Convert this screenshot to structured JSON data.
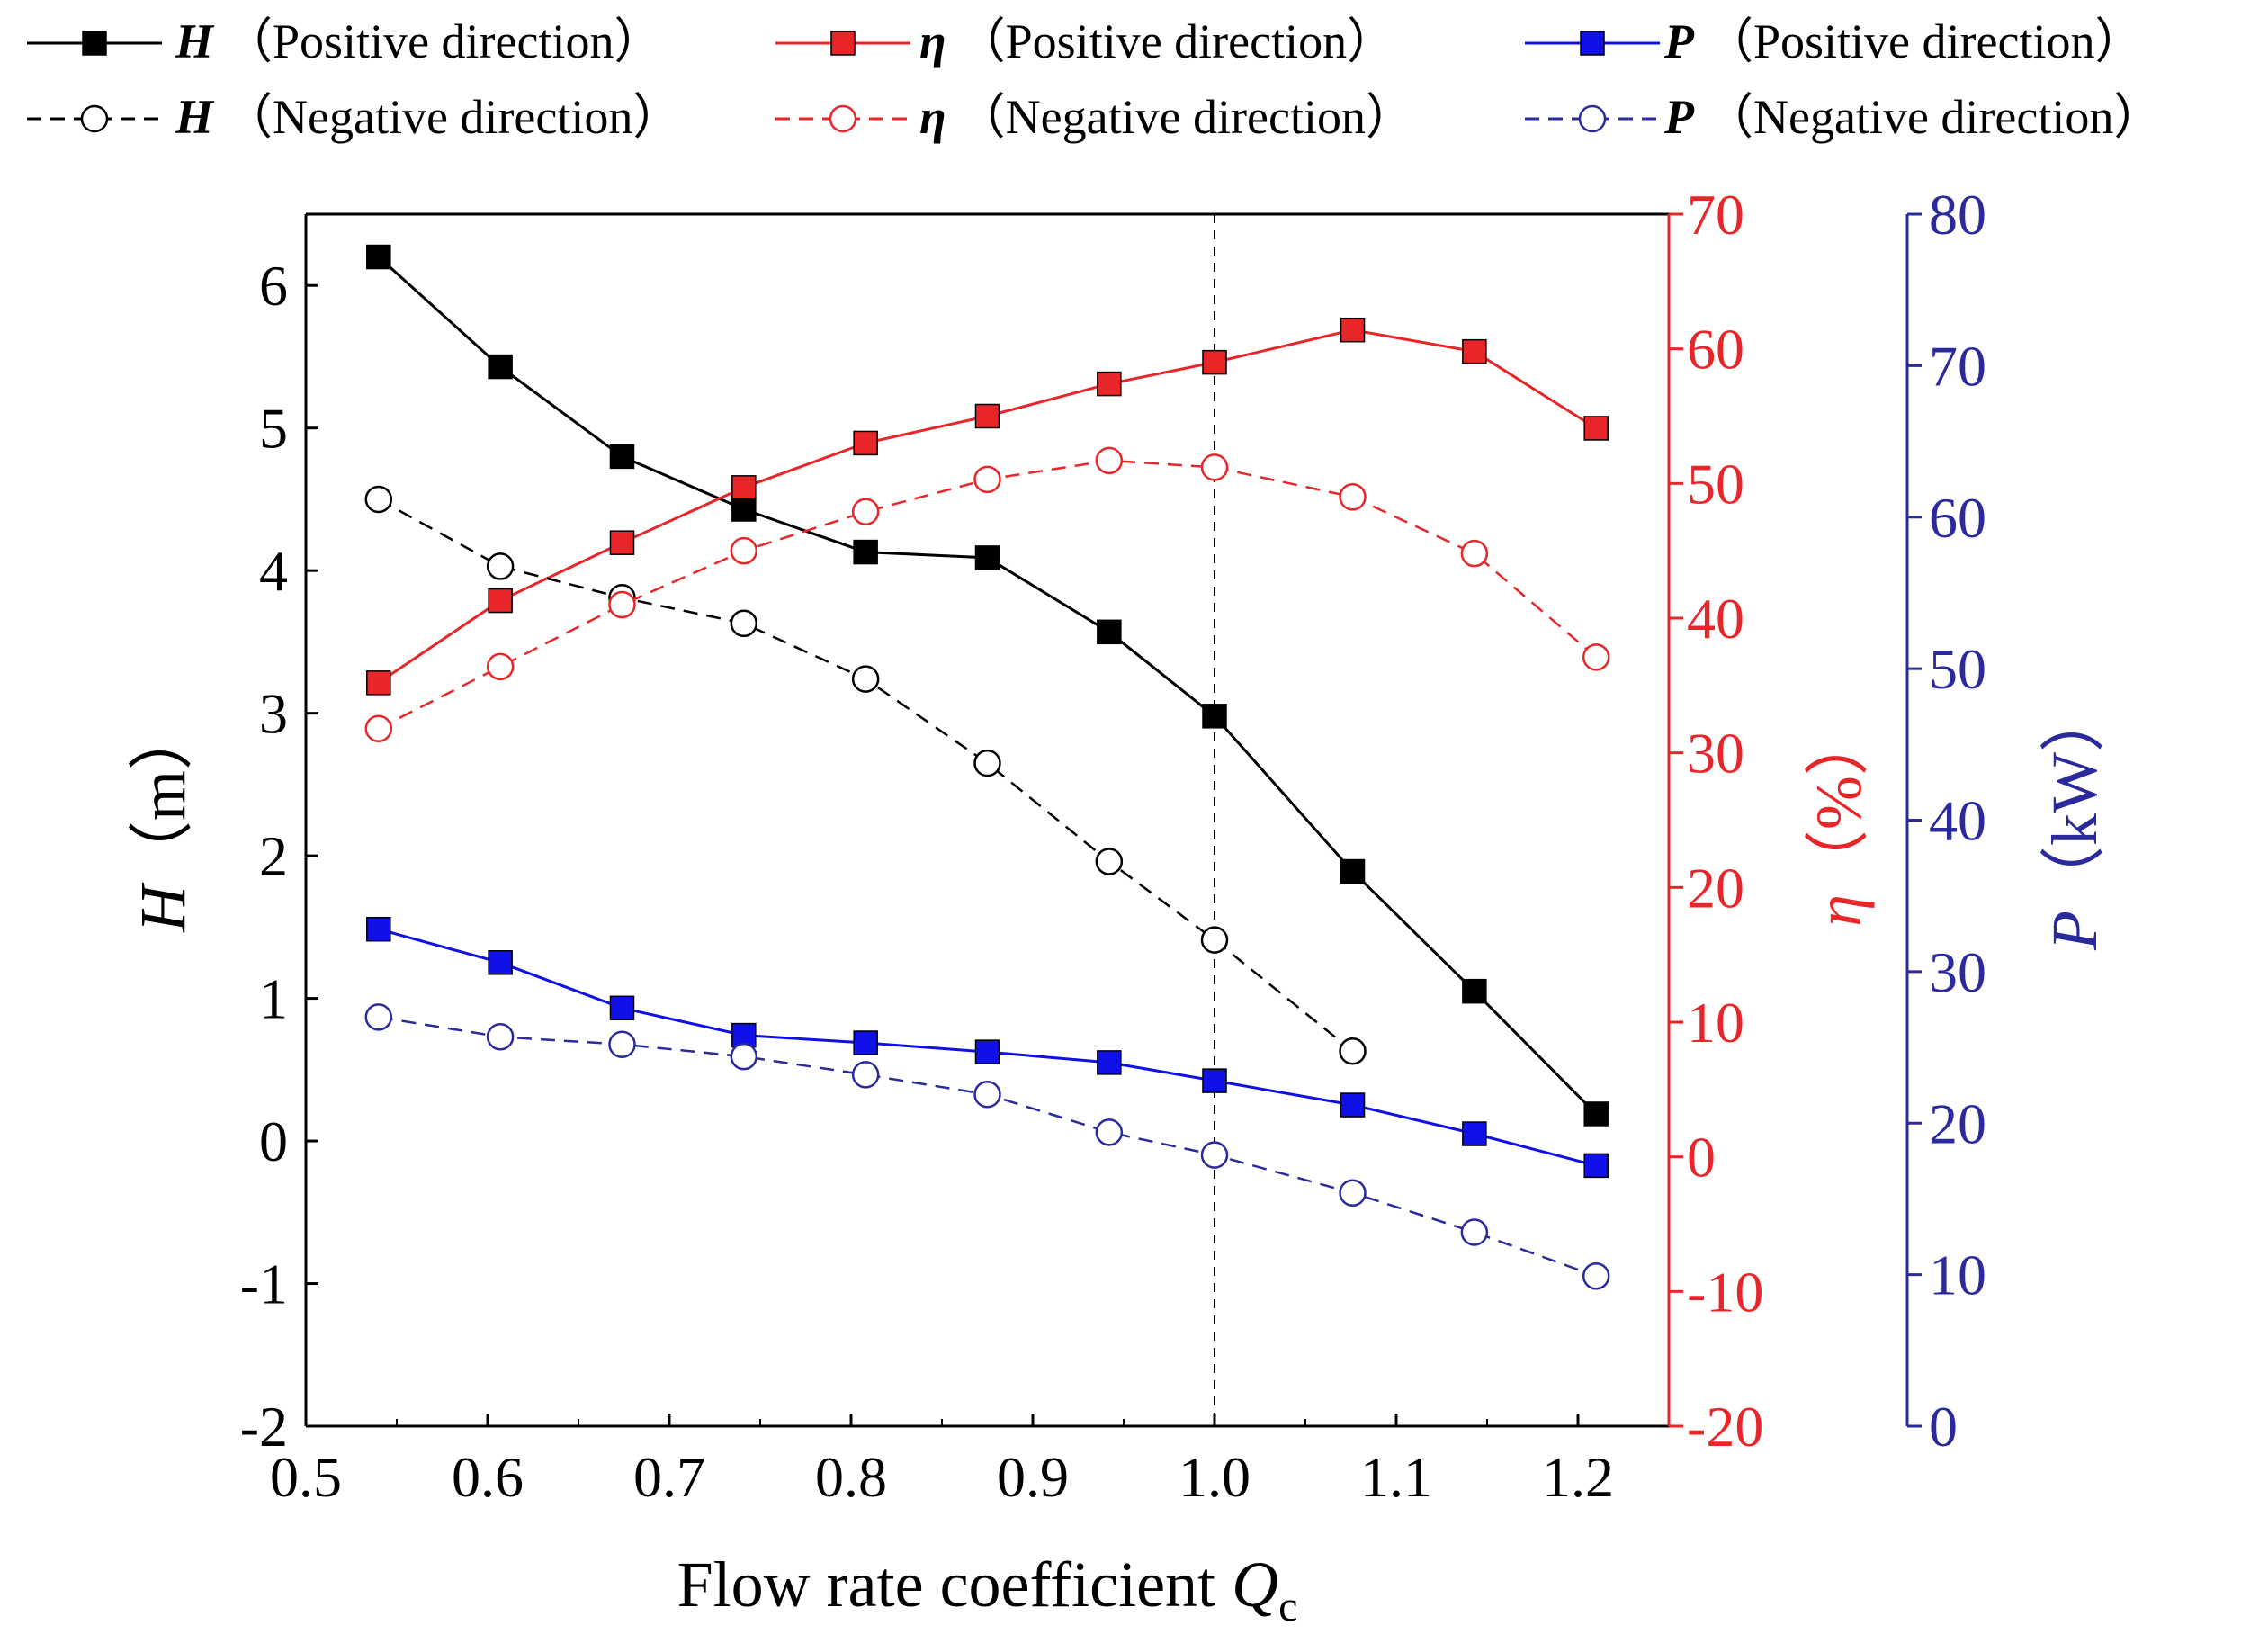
{
  "chart_data": {
    "type": "line",
    "x": [
      0.54,
      0.607,
      0.674,
      0.741,
      0.808,
      0.875,
      0.942,
      1.0,
      1.076,
      1.143,
      1.21
    ],
    "xlabel_text": "Flow rate coefficient ",
    "xlabel_var": "Q",
    "xlabel_sub": "c",
    "xlim": [
      0.5,
      1.25
    ],
    "xticks": [
      "0.5",
      "0.6",
      "0.7",
      "0.8",
      "0.9",
      "1.0",
      "1.1",
      "1.2"
    ],
    "reference_line_x": 1.0,
    "axes": {
      "H": {
        "var": "H",
        "unit": "（m）",
        "color": "#000000",
        "range": [
          -2,
          6.5
        ],
        "ticks": [
          "-2",
          "-1",
          "0",
          "1",
          "2",
          "3",
          "4",
          "5",
          "6"
        ]
      },
      "eta": {
        "var": "η",
        "unit": "（%）",
        "color": "#e8262a",
        "range": [
          -20,
          70
        ],
        "ticks": [
          "-20",
          "-10",
          "0",
          "10",
          "20",
          "30",
          "40",
          "50",
          "60",
          "70"
        ]
      },
      "P": {
        "var": "P",
        "unit": "（kW）",
        "color": "#2a2a9c",
        "range": [
          0,
          80
        ],
        "ticks": [
          "0",
          "10",
          "20",
          "30",
          "40",
          "50",
          "60",
          "70",
          "80"
        ]
      }
    },
    "series": [
      {
        "name": "H（Positive direction）",
        "var": "H",
        "label": "（Positive direction）",
        "axis": "H",
        "style": "solid",
        "marker": "filled-square",
        "color": "#000000",
        "values": [
          6.2,
          5.43,
          4.8,
          4.43,
          4.13,
          4.09,
          3.57,
          2.98,
          1.89,
          1.05,
          0.19
        ]
      },
      {
        "name": "η（Positive direction）",
        "var": "η",
        "label": "（Positive direction）",
        "axis": "eta",
        "style": "solid",
        "marker": "filled-square",
        "color": "#e8262a",
        "values": [
          35.2,
          41.3,
          45.6,
          49.7,
          53.0,
          55.0,
          57.4,
          59.0,
          61.4,
          59.8,
          54.1
        ]
      },
      {
        "name": "P（Positive direction）",
        "var": "P",
        "label": "（Positive direction）",
        "axis": "P",
        "style": "solid",
        "marker": "filled-square",
        "color": "#1010e8",
        "values": [
          32.8,
          30.6,
          27.6,
          25.8,
          25.3,
          24.7,
          24.0,
          22.8,
          21.2,
          19.3,
          17.2
        ]
      },
      {
        "name": "H（Negative direction）",
        "var": "H",
        "label": "（Negative direction）",
        "axis": "H",
        "style": "dashed",
        "marker": "open-circle",
        "color": "#000000",
        "values": [
          4.5,
          4.03,
          3.81,
          3.63,
          3.24,
          2.65,
          1.96,
          1.41,
          0.63,
          null,
          null
        ]
      },
      {
        "name": "η（Negative direction）",
        "var": "η",
        "label": "（Negative direction）",
        "axis": "eta",
        "style": "dashed",
        "marker": "open-circle",
        "color": "#e8262a",
        "values": [
          31.8,
          36.4,
          41.0,
          45.0,
          47.9,
          50.3,
          51.7,
          51.2,
          49.0,
          44.8,
          37.1
        ]
      },
      {
        "name": "P（Negative direction）",
        "var": "P",
        "label": "（Negative direction）",
        "axis": "P",
        "style": "dashed",
        "marker": "open-circle",
        "color": "#2a2a9c",
        "values": [
          27.0,
          25.7,
          25.2,
          24.4,
          23.2,
          21.9,
          19.4,
          17.9,
          15.4,
          12.8,
          9.9
        ]
      }
    ]
  }
}
